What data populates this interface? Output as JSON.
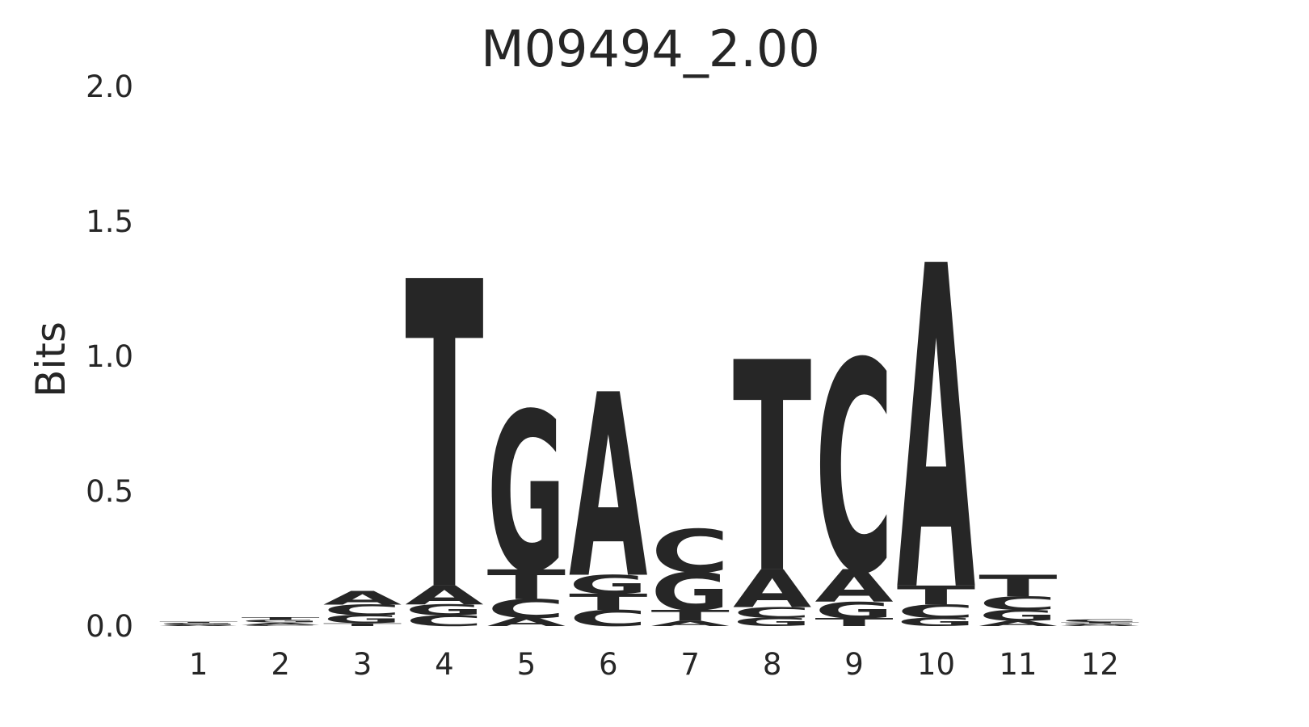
{
  "chart_data": {
    "type": "logo",
    "title": "M09494_2.00",
    "y_label": "Bits",
    "categories": [
      "1",
      "2",
      "3",
      "4",
      "5",
      "6",
      "7",
      "8",
      "9",
      "10",
      "11",
      "12"
    ],
    "series": [
      {
        "name": "A",
        "color": "#008000",
        "values": [
          0.003,
          0.008,
          0.05,
          0.07,
          0.03,
          0.68,
          0.02,
          0.14,
          0.12,
          1.2,
          0.02,
          0.005
        ]
      },
      {
        "name": "C",
        "color": "#0000ff",
        "values": [
          0.003,
          0.005,
          0.04,
          0.04,
          0.07,
          0.06,
          0.16,
          0.04,
          0.78,
          0.05,
          0.05,
          0.01
        ]
      },
      {
        "name": "G",
        "color": "#ffa500",
        "values": [
          0.005,
          0.01,
          0.03,
          0.04,
          0.59,
          0.07,
          0.14,
          0.03,
          0.06,
          0.03,
          0.04,
          0.005
        ]
      },
      {
        "name": "T",
        "color": "#ff0000",
        "values": [
          0.005,
          0.01,
          0.01,
          1.14,
          0.11,
          0.06,
          0.04,
          0.78,
          0.03,
          0.07,
          0.08,
          0.005
        ]
      }
    ],
    "ylim": [
      0,
      2
    ],
    "yticks": [
      {
        "value": 0,
        "label": "0.0"
      },
      {
        "value": 0.5,
        "label": "0.5"
      },
      {
        "value": 1,
        "label": "1.0"
      },
      {
        "value": 1.5,
        "label": "1.5"
      },
      {
        "value": 2,
        "label": "2.0"
      }
    ]
  }
}
